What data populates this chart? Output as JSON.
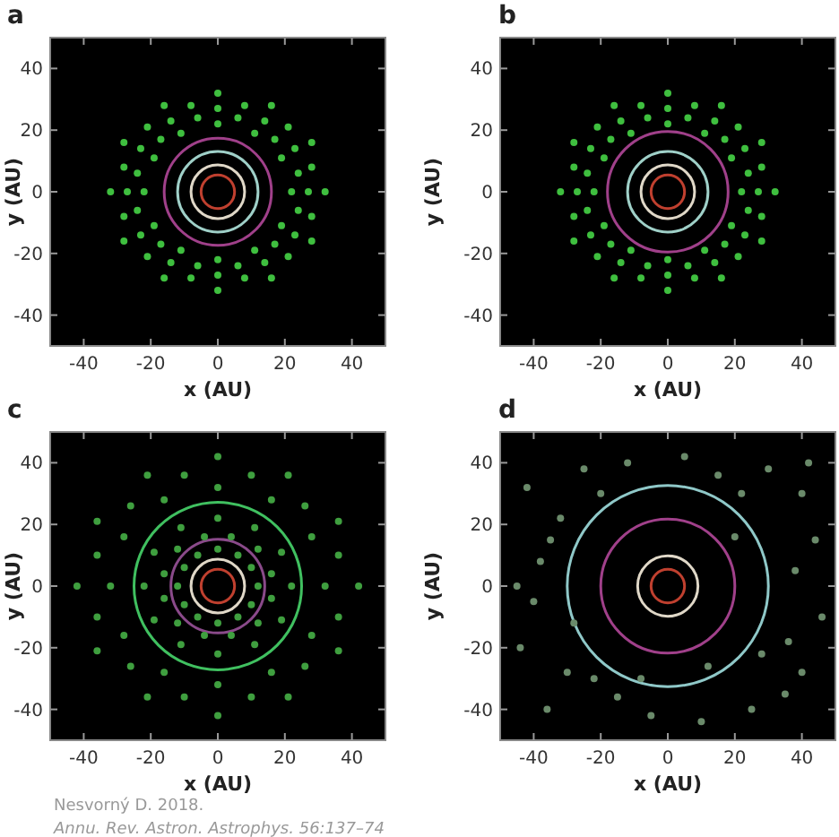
{
  "chart_data": [
    {
      "type": "scatter",
      "title": "a",
      "xlabel": "x (AU)",
      "ylabel": "y (AU)",
      "xlim": [
        -50,
        50
      ],
      "ylim": [
        -50,
        50
      ],
      "xticks": [
        -40,
        -20,
        0,
        20,
        40
      ],
      "yticks": [
        -40,
        -20,
        0,
        20,
        40
      ],
      "series": [
        {
          "type": "scatter",
          "color": "#3fbf3f",
          "x": [
            22,
            19,
            11,
            0,
            -11,
            -19,
            -22,
            -19,
            -11,
            0,
            11,
            19,
            27,
            23,
            14,
            0,
            -14,
            -23,
            -27,
            -23,
            -14,
            0,
            14,
            23,
            32,
            28,
            16,
            0,
            -16,
            -28,
            -32,
            -28,
            -16,
            0,
            16,
            28,
            24,
            17,
            6,
            -6,
            -17,
            -24,
            -24,
            -17,
            -6,
            6,
            17,
            24,
            28,
            21,
            8,
            -8,
            -21,
            -28,
            -28,
            -21,
            -8,
            8,
            21,
            28
          ],
          "values": [
            0,
            11,
            19,
            22,
            19,
            11,
            0,
            -11,
            -19,
            -22,
            -19,
            -11,
            0,
            14,
            23,
            27,
            23,
            14,
            0,
            -14,
            -23,
            -27,
            -23,
            -14,
            0,
            16,
            28,
            32,
            28,
            16,
            0,
            -16,
            -28,
            -32,
            -28,
            -16,
            6,
            17,
            24,
            24,
            17,
            6,
            -6,
            -17,
            -24,
            -24,
            -17,
            -6,
            8,
            21,
            28,
            28,
            21,
            8,
            -8,
            -21,
            -28,
            -28,
            -21,
            -8
          ]
        }
      ]
    },
    {
      "type": "scatter",
      "title": "b",
      "xlabel": "x (AU)",
      "ylabel": "y (AU)",
      "xlim": [
        -50,
        50
      ],
      "ylim": [
        -50,
        50
      ],
      "xticks": [
        -40,
        -20,
        0,
        20,
        40
      ],
      "yticks": [
        -40,
        -20,
        0,
        20,
        40
      ],
      "series": [
        {
          "type": "scatter",
          "color": "#3fbf3f",
          "x": [
            22,
            19,
            11,
            0,
            -11,
            -19,
            -22,
            -19,
            -11,
            0,
            11,
            19,
            27,
            23,
            14,
            0,
            -14,
            -23,
            -27,
            -23,
            -14,
            0,
            14,
            23,
            32,
            28,
            16,
            0,
            -16,
            -28,
            -32,
            -28,
            -16,
            0,
            16,
            28,
            24,
            17,
            6,
            -6,
            -17,
            -24,
            -24,
            -17,
            -6,
            6,
            17,
            24,
            28,
            21,
            8,
            -8,
            -21,
            -28,
            -28,
            -21,
            -8,
            8,
            21,
            28
          ],
          "values": [
            0,
            11,
            19,
            22,
            19,
            11,
            0,
            -11,
            -19,
            -22,
            -19,
            -11,
            0,
            14,
            23,
            27,
            23,
            14,
            0,
            -14,
            -23,
            -27,
            -23,
            -14,
            0,
            16,
            28,
            32,
            28,
            16,
            0,
            -16,
            -28,
            -32,
            -28,
            -16,
            6,
            17,
            24,
            24,
            17,
            6,
            -6,
            -17,
            -24,
            -24,
            -17,
            -6,
            8,
            21,
            28,
            28,
            21,
            8,
            -8,
            -21,
            -28,
            -28,
            -21,
            -8
          ]
        }
      ]
    },
    {
      "type": "scatter",
      "title": "c",
      "xlabel": "x (AU)",
      "ylabel": "y (AU)",
      "xlim": [
        -50,
        50
      ],
      "ylim": [
        -50,
        50
      ],
      "xticks": [
        -40,
        -20,
        0,
        20,
        40
      ],
      "yticks": [
        -40,
        -20,
        0,
        20,
        40
      ],
      "annotations": [
        "Nesvorný D. 2018.",
        "Annu. Rev. Astron. Astrophys. 56:137–74"
      ],
      "series": [
        {
          "type": "scatter",
          "color": "#3f9f3f",
          "x": [
            12,
            10,
            6,
            0,
            -6,
            -10,
            -12,
            -10,
            -6,
            0,
            6,
            10,
            22,
            19,
            11,
            0,
            -11,
            -19,
            -22,
            -19,
            -11,
            0,
            11,
            19,
            32,
            28,
            16,
            0,
            -16,
            -28,
            -32,
            -28,
            -16,
            0,
            16,
            28,
            42,
            36,
            21,
            0,
            -21,
            -36,
            -42,
            -36,
            -21,
            0,
            21,
            36,
            16,
            12,
            4,
            -4,
            -12,
            -16,
            -16,
            -12,
            -4,
            4,
            12,
            16,
            36,
            26,
            10,
            -10,
            -26,
            -36,
            -36,
            -26,
            -10,
            10,
            26,
            36
          ],
          "values": [
            0,
            6,
            10,
            12,
            10,
            6,
            0,
            -6,
            -10,
            -12,
            -10,
            -6,
            0,
            11,
            19,
            22,
            19,
            11,
            0,
            -11,
            -19,
            -22,
            -19,
            -11,
            0,
            16,
            28,
            32,
            28,
            16,
            0,
            -16,
            -28,
            -32,
            -28,
            -16,
            0,
            21,
            36,
            42,
            36,
            21,
            0,
            -21,
            -36,
            -42,
            -36,
            -21,
            4,
            12,
            16,
            16,
            12,
            4,
            -4,
            -12,
            -16,
            -16,
            -12,
            -4,
            10,
            26,
            36,
            36,
            26,
            10,
            -10,
            -26,
            -36,
            -36,
            -26,
            -10
          ]
        }
      ]
    },
    {
      "type": "scatter",
      "title": "d",
      "xlabel": "x (AU)",
      "ylabel": "y (AU)",
      "xlim": [
        -50,
        50
      ],
      "ylim": [
        -50,
        50
      ],
      "xticks": [
        -40,
        -20,
        0,
        20,
        40
      ],
      "yticks": [
        -40,
        -20,
        0,
        20,
        40
      ],
      "series": [
        {
          "type": "scatter",
          "color": "#6a8a6a",
          "x": [
            -42,
            -38,
            -36,
            -44,
            -30,
            -25,
            -20,
            -12,
            5,
            15,
            22,
            30,
            40,
            44,
            38,
            46,
            40,
            35,
            25,
            10,
            -5,
            -15,
            -22,
            -40,
            -45,
            -32,
            36,
            42,
            -8,
            12,
            20,
            -28,
            28,
            -35
          ],
          "values": [
            32,
            8,
            -40,
            -20,
            -28,
            38,
            30,
            40,
            42,
            36,
            30,
            38,
            30,
            15,
            5,
            -10,
            -28,
            -35,
            -40,
            -44,
            -42,
            -36,
            -30,
            -5,
            0,
            22,
            -18,
            40,
            -30,
            -26,
            16,
            -12,
            -22,
            15
          ]
        }
      ]
    }
  ]
}
